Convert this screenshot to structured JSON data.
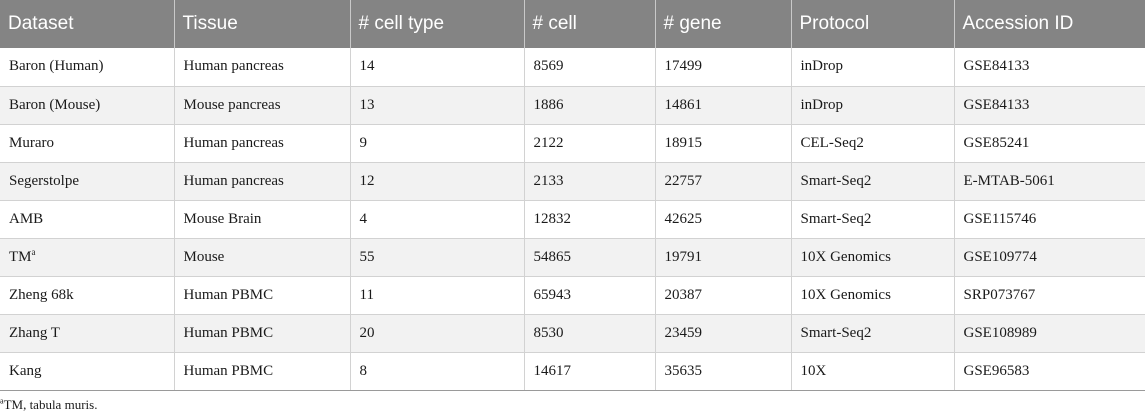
{
  "table": {
    "headers": [
      "Dataset",
      "Tissue",
      "# cell type",
      "# cell",
      "# gene",
      "Protocol",
      "Accession ID"
    ],
    "rows": [
      {
        "dataset": "Baron (Human)",
        "tissue": "Human pancreas",
        "cell_type": "14",
        "cell": "8569",
        "gene": "17499",
        "protocol": "inDrop",
        "accession": "GSE84133"
      },
      {
        "dataset": "Baron (Mouse)",
        "tissue": "Mouse pancreas",
        "cell_type": "13",
        "cell": "1886",
        "gene": "14861",
        "protocol": "inDrop",
        "accession": "GSE84133"
      },
      {
        "dataset": "Muraro",
        "tissue": "Human pancreas",
        "cell_type": "9",
        "cell": "2122",
        "gene": "18915",
        "protocol": "CEL-Seq2",
        "accession": "GSE85241"
      },
      {
        "dataset": "Segerstolpe",
        "tissue": "Human pancreas",
        "cell_type": "12",
        "cell": "2133",
        "gene": "22757",
        "protocol": "Smart-Seq2",
        "accession": "E-MTAB-5061"
      },
      {
        "dataset": "AMB",
        "tissue": "Mouse Brain",
        "cell_type": "4",
        "cell": "12832",
        "gene": "42625",
        "protocol": "Smart-Seq2",
        "accession": "GSE115746"
      },
      {
        "dataset": "TM",
        "dataset_sup": "a",
        "tissue": "Mouse",
        "cell_type": "55",
        "cell": "54865",
        "gene": "19791",
        "protocol": "10X Genomics",
        "accession": "GSE109774"
      },
      {
        "dataset": "Zheng 68k",
        "tissue": "Human PBMC",
        "cell_type": "11",
        "cell": "65943",
        "gene": "20387",
        "protocol": "10X Genomics",
        "accession": "SRP073767"
      },
      {
        "dataset": "Zhang T",
        "tissue": "Human PBMC",
        "cell_type": "20",
        "cell": "8530",
        "gene": "23459",
        "protocol": "Smart-Seq2",
        "accession": "GSE108989"
      },
      {
        "dataset": "Kang",
        "tissue": "Human PBMC",
        "cell_type": "8",
        "cell": "14617",
        "gene": "35635",
        "protocol": "10X",
        "accession": "GSE96583"
      }
    ]
  },
  "footnote": {
    "marker": "a",
    "text": "TM, tabula muris."
  },
  "colors": {
    "header_bg": "#848484",
    "header_text": "#ffffff",
    "row_alt_bg": "#f2f2f2"
  }
}
